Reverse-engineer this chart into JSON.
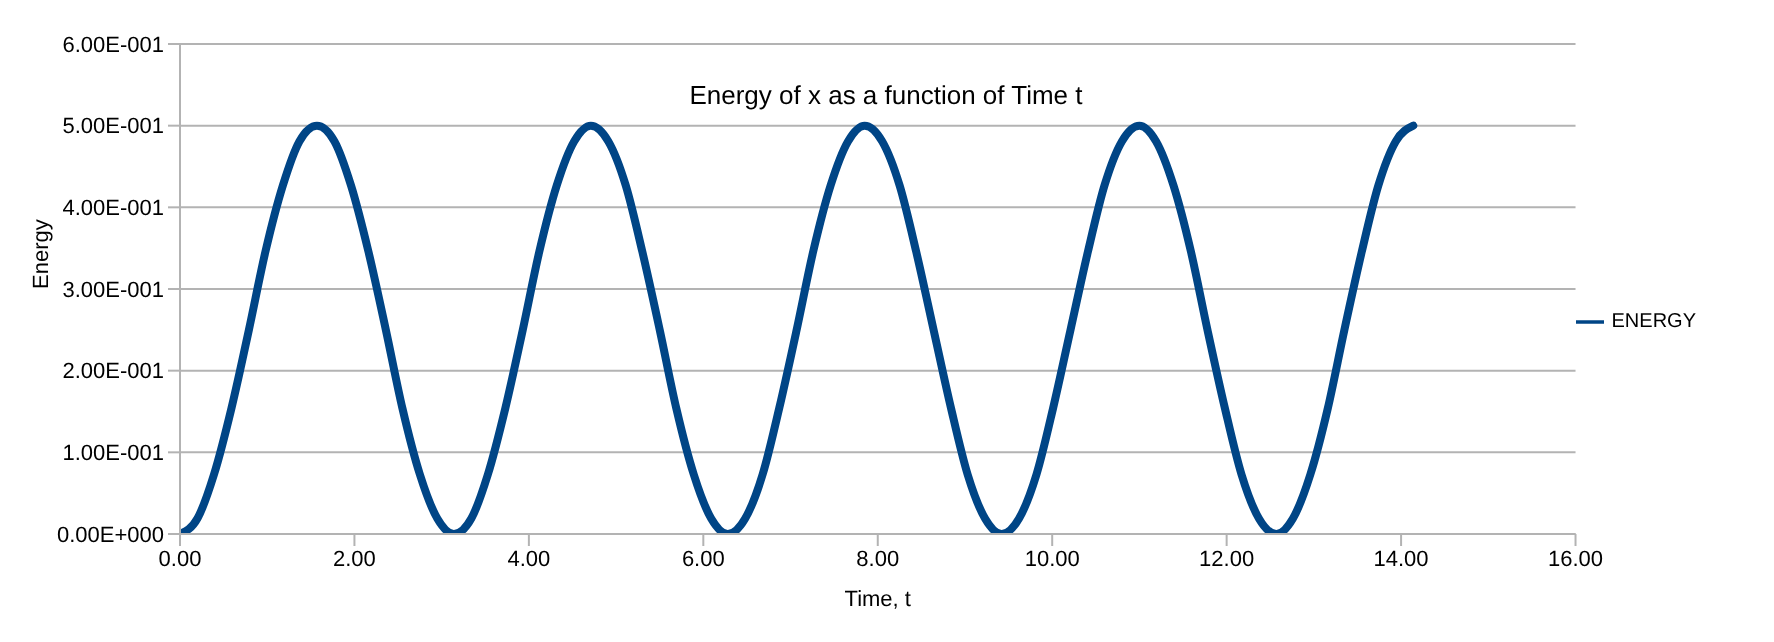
{
  "chart_data": {
    "type": "line",
    "title": "Energy of x as a function of Time t",
    "xlabel": "Time, t",
    "ylabel": "Energy",
    "x": [
      0,
      0.2,
      0.39,
      0.59,
      0.79,
      0.98,
      1.18,
      1.37,
      1.57,
      1.77,
      1.96,
      2.16,
      2.36,
      2.55,
      2.75,
      2.95,
      3.14,
      3.34,
      3.53,
      3.73,
      3.93,
      4.12,
      4.32,
      4.52,
      4.71,
      4.91,
      5.11,
      5.3,
      5.5,
      5.69,
      5.89,
      6.09,
      6.28,
      6.48,
      6.68,
      6.87,
      7.07,
      7.26,
      7.46,
      7.66,
      7.85,
      8.05,
      8.25,
      8.44,
      8.64,
      8.84,
      9.03,
      9.23,
      9.42,
      9.62,
      9.82,
      10.01,
      10.21,
      10.41,
      10.6,
      10.8,
      11.0,
      11.19,
      11.39,
      11.59,
      11.78,
      11.98,
      12.17,
      12.37,
      12.57,
      12.76,
      12.96,
      13.16,
      13.35,
      13.55,
      13.74,
      13.94,
      14.14
    ],
    "series": [
      {
        "name": "ENERGY",
        "color": "#004586",
        "values": [
          0,
          0.019,
          0.073,
          0.154,
          0.25,
          0.346,
          0.427,
          0.481,
          0.5,
          0.481,
          0.427,
          0.346,
          0.25,
          0.154,
          0.073,
          0.019,
          0,
          0.019,
          0.073,
          0.154,
          0.25,
          0.346,
          0.427,
          0.481,
          0.5,
          0.481,
          0.427,
          0.346,
          0.25,
          0.154,
          0.073,
          0.019,
          0,
          0.019,
          0.073,
          0.154,
          0.25,
          0.346,
          0.427,
          0.481,
          0.5,
          0.481,
          0.427,
          0.346,
          0.25,
          0.154,
          0.073,
          0.019,
          0,
          0.019,
          0.073,
          0.154,
          0.25,
          0.346,
          0.427,
          0.481,
          0.5,
          0.481,
          0.427,
          0.346,
          0.25,
          0.154,
          0.073,
          0.019,
          0,
          0.019,
          0.073,
          0.154,
          0.25,
          0.346,
          0.427,
          0.481,
          0.5
        ]
      }
    ],
    "xlim": [
      0,
      16
    ],
    "xticks": [
      {
        "value": 0,
        "label": "0.00"
      },
      {
        "value": 2,
        "label": "2.00"
      },
      {
        "value": 4,
        "label": "4.00"
      },
      {
        "value": 6,
        "label": "6.00"
      },
      {
        "value": 8,
        "label": "8.00"
      },
      {
        "value": 10,
        "label": "10.00"
      },
      {
        "value": 12,
        "label": "12.00"
      },
      {
        "value": 14,
        "label": "14.00"
      },
      {
        "value": 16,
        "label": "16.00"
      }
    ],
    "ylim": [
      0,
      0.6
    ],
    "yticks": [
      {
        "value": 0,
        "label": "0.00E+000"
      },
      {
        "value": 0.1,
        "label": "1.00E-001"
      },
      {
        "value": 0.2,
        "label": "2.00E-001"
      },
      {
        "value": 0.3,
        "label": "3.00E-001"
      },
      {
        "value": 0.4,
        "label": "4.00E-001"
      },
      {
        "value": 0.5,
        "label": "5.00E-001"
      },
      {
        "value": 0.6,
        "label": "6.00E-001"
      }
    ],
    "grid": "y",
    "legend": "right",
    "marker": "none",
    "line_style": "solid"
  }
}
